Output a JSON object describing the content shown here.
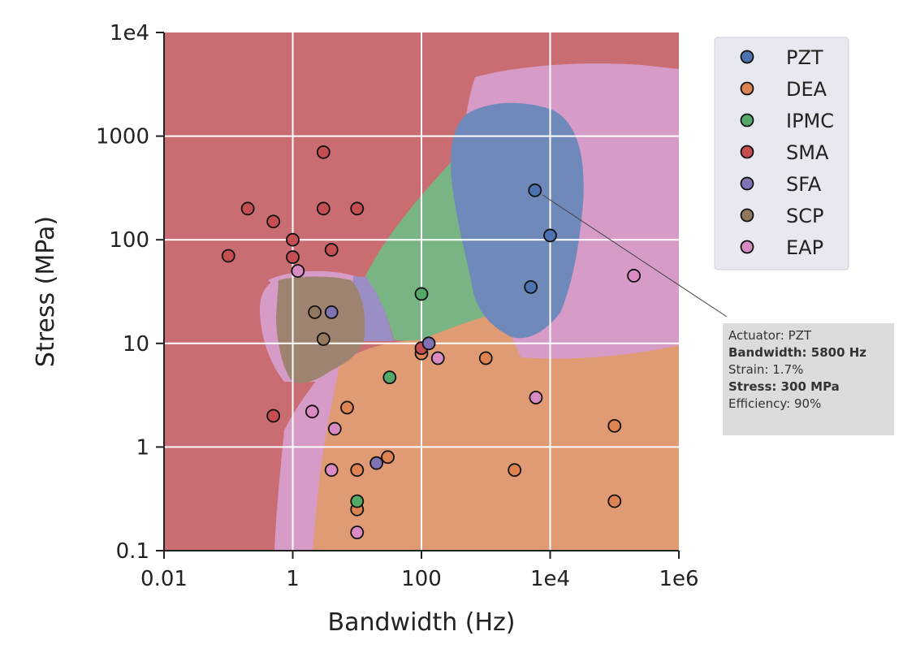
{
  "chart_data": {
    "type": "scatter",
    "xlabel": "Bandwidth (Hz)",
    "ylabel": "Stress (MPa)",
    "x_scale": "log",
    "y_scale": "log",
    "xlim": [
      0.01,
      1000000
    ],
    "ylim": [
      0.1,
      10000
    ],
    "x_ticks": [
      {
        "value": 0.01,
        "label": "0.01"
      },
      {
        "value": 1,
        "label": "1"
      },
      {
        "value": 100,
        "label": "100"
      },
      {
        "value": 10000,
        "label": "1e4"
      },
      {
        "value": 1000000,
        "label": "1e6"
      }
    ],
    "y_ticks": [
      {
        "value": 0.1,
        "label": "0.1"
      },
      {
        "value": 1,
        "label": "1"
      },
      {
        "value": 10,
        "label": "10"
      },
      {
        "value": 100,
        "label": "100"
      },
      {
        "value": 1000,
        "label": "1000"
      },
      {
        "value": 10000,
        "label": "1e4"
      }
    ],
    "grid": true,
    "legend_position": "top-right outside",
    "background_regions": "classification regions per actuator class",
    "series": [
      {
        "name": "PZT",
        "color": "#4c72b0",
        "points": [
          [
            5800,
            300
          ],
          [
            10000,
            110
          ],
          [
            5000,
            35
          ]
        ]
      },
      {
        "name": "DEA",
        "color": "#dd8452",
        "points": [
          [
            100,
            8
          ],
          [
            1000,
            7.2
          ],
          [
            7,
            2.4
          ],
          [
            30,
            0.8
          ],
          [
            10,
            0.6
          ],
          [
            2800,
            0.6
          ],
          [
            10,
            0.25
          ],
          [
            100000,
            1.6
          ],
          [
            100000,
            0.3
          ]
        ]
      },
      {
        "name": "IPMC",
        "color": "#55a868",
        "points": [
          [
            100,
            30
          ],
          [
            32,
            4.7
          ],
          [
            10,
            0.3
          ]
        ]
      },
      {
        "name": "SMA",
        "color": "#c44e52",
        "points": [
          [
            3,
            700
          ],
          [
            0.2,
            200
          ],
          [
            0.5,
            150
          ],
          [
            3,
            200
          ],
          [
            10,
            200
          ],
          [
            1,
            100
          ],
          [
            0.1,
            70
          ],
          [
            1,
            68
          ],
          [
            4,
            80
          ],
          [
            0.5,
            2
          ],
          [
            100,
            9
          ]
        ]
      },
      {
        "name": "SFA",
        "color": "#8172b3",
        "points": [
          [
            4,
            20
          ],
          [
            130,
            10
          ],
          [
            20,
            0.7
          ]
        ]
      },
      {
        "name": "SCP",
        "color": "#937860",
        "points": [
          [
            2.2,
            20
          ],
          [
            3,
            11
          ]
        ]
      },
      {
        "name": "EAP",
        "color": "#da8bc3",
        "points": [
          [
            1.2,
            50
          ],
          [
            180,
            7.2
          ],
          [
            6000,
            3
          ],
          [
            2,
            2.2
          ],
          [
            4.5,
            1.5
          ],
          [
            4,
            0.6
          ],
          [
            10,
            0.15
          ],
          [
            200000,
            45
          ]
        ]
      }
    ],
    "tooltip": {
      "actuator": "Actuator: PZT",
      "bandwidth": "Bandwidth: 5800 Hz",
      "strain": "Strain: 1.7%",
      "stress": "Stress: 300 MPa",
      "efficiency": "Efficiency: 90%"
    }
  }
}
